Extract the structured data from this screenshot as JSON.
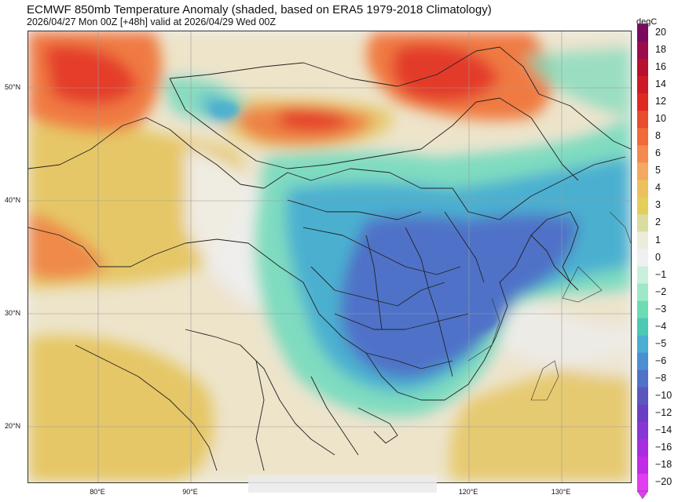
{
  "header": {
    "title": "ECMWF 850mb Temperature Anomaly (shaded, based on ERA5 1979-2018 Climatology)",
    "subtitle": "2026/04/27 Mon 00Z [+48h] valid at 2026/04/29 Wed 00Z"
  },
  "axes": {
    "lat_labels": [
      "50°N",
      "40°N",
      "30°N",
      "20°N"
    ],
    "lon_labels": [
      "80°E",
      "90°E",
      "120°E",
      "130°E"
    ]
  },
  "colorbar": {
    "unit": "degC",
    "levels": [
      "20",
      "18",
      "16",
      "14",
      "12",
      "10",
      "8",
      "6",
      "5",
      "4",
      "3",
      "2",
      "1",
      "0",
      "−1",
      "−2",
      "−3",
      "−4",
      "−5",
      "−6",
      "−8",
      "−10",
      "−12",
      "−14",
      "−16",
      "−18",
      "−20"
    ],
    "colors": [
      "#7a0a5e",
      "#9c0d4c",
      "#b8102f",
      "#cc1a26",
      "#de2a22",
      "#e84c2c",
      "#f06a3a",
      "#f58a4f",
      "#f4a862",
      "#ecc05c",
      "#e3cf5a",
      "#d9dea0",
      "#ececdc",
      "#f0f0f0",
      "#c9f0dc",
      "#9fe8c7",
      "#6ddcb3",
      "#4bc9b5",
      "#4aaed0",
      "#4b8fd3",
      "#4f72c8",
      "#5a58bd",
      "#6a3fc4",
      "#8a36d6",
      "#a62ee0",
      "#c02ce8",
      "#e03cf0"
    ]
  },
  "colors": {
    "warm_strong": "#e33a2a",
    "warm": "#f07a42",
    "mild": "#e6c45c",
    "neutral": "#efefef",
    "cool": "#7fdcbf",
    "cold": "#4bb0d0",
    "very_cold": "#4f72c8",
    "boundary": "#222222"
  }
}
